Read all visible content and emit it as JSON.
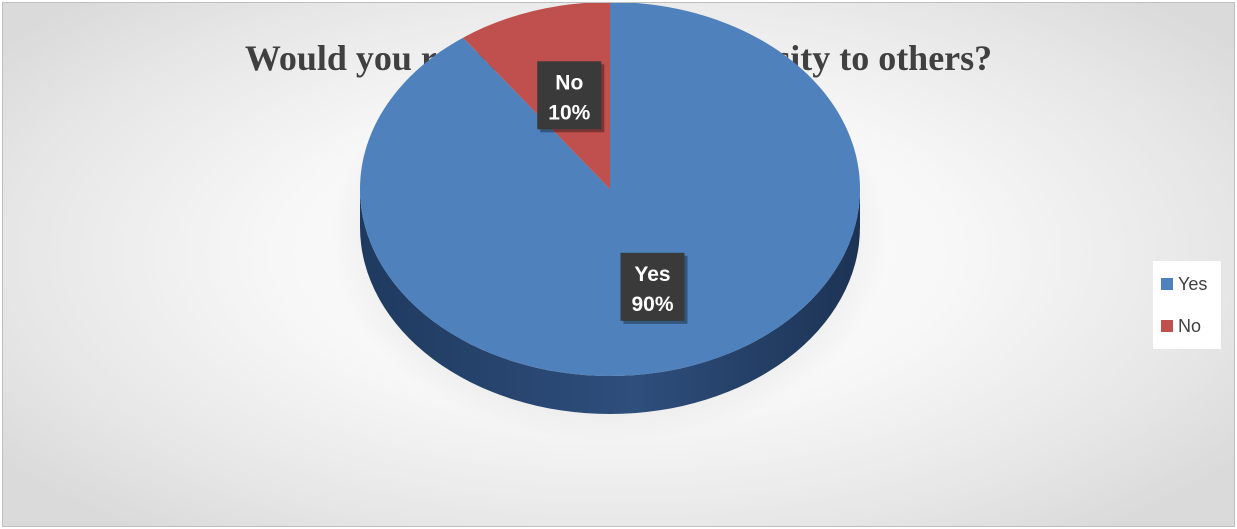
{
  "chart_data": {
    "type": "pie",
    "title": "Would you recommend this university to others?",
    "categories": [
      "Yes",
      "No"
    ],
    "values": [
      90,
      10
    ],
    "value_unit": "%",
    "start_angle_deg": 0,
    "direction": "clockwise",
    "style": "3d",
    "legend_position": "right",
    "colors": [
      "#4f81bd",
      "#c0504d"
    ],
    "side_colors": [
      "#2c4a75",
      "#7a2b29"
    ],
    "data_labels": [
      {
        "category": "Yes",
        "percent": "90%"
      },
      {
        "category": "No",
        "percent": "10%"
      }
    ]
  }
}
